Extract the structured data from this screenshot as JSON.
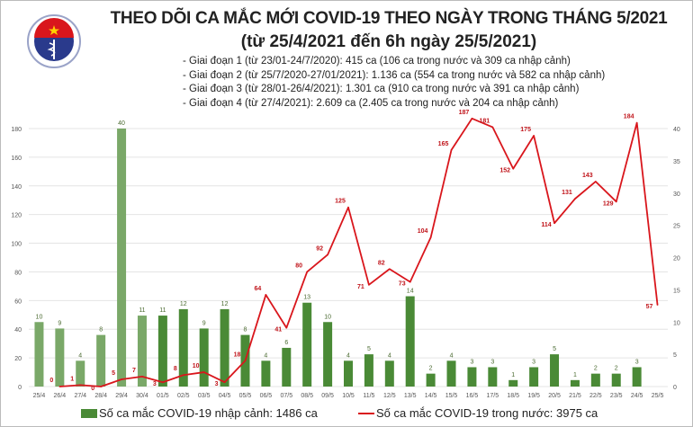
{
  "header": {
    "title": "THEO DÕI CA MẮC MỚI COVID-19 THEO NGÀY TRONG THÁNG 5/2021",
    "subtitle": "(từ 25/4/2021 đến 6h ngày 25/5/2021)",
    "phases": [
      "- Giai đoạn 1 (từ 23/01-24/7/2020): 415 ca (106 ca trong nước và 309 ca nhập cảnh)",
      "- Giai đoạn 2 (từ 25/7/2020-27/01/2021): 1.136 ca (554 ca trong nước và 582 ca nhập cảnh)",
      "- Giai đoạn 3 (từ 28/01-26/4/2021): 1.301 ca (910 ca trong nước và 391 ca nhập cảnh)",
      "- Giai đoạn 4 (từ 27/4/2021): 2.609 ca (2.405 ca trong nước và 204 ca nhập cảnh)"
    ],
    "logo_text": "BỘ Y TẾ MINISTRY OF HEALTH"
  },
  "chart_data": {
    "type": "bar+line",
    "categories": [
      "25/4",
      "26/4",
      "27/4",
      "28/4",
      "29/4",
      "30/4",
      "01/5",
      "02/5",
      "03/5",
      "04/5",
      "05/5",
      "06/5",
      "07/5",
      "08/5",
      "09/5",
      "10/5",
      "11/5",
      "12/5",
      "13/5",
      "14/5",
      "15/5",
      "16/5",
      "17/5",
      "18/5",
      "19/5",
      "20/5",
      "21/5",
      "22/5",
      "23/5",
      "24/5",
      "25/5"
    ],
    "series": [
      {
        "name": "Số ca mắc COVID-19 nhập cảnh: 1486 ca",
        "type": "bar",
        "axis": "right",
        "color": "#4a8a36",
        "early_color": "#7aa868",
        "values": [
          10,
          9,
          4,
          8,
          40,
          11,
          11,
          12,
          9,
          12,
          8,
          4,
          6,
          13,
          10,
          4,
          5,
          4,
          14,
          2,
          4,
          3,
          3,
          1,
          3,
          5,
          1,
          2,
          2,
          3,
          null
        ]
      },
      {
        "name": "Số ca mắc COVID-19 trong nước: 3975 ca",
        "type": "line",
        "axis": "left",
        "color": "#d9161c",
        "values": [
          null,
          0,
          1,
          0,
          5,
          7,
          3,
          8,
          10,
          3,
          18,
          64,
          41,
          80,
          92,
          125,
          71,
          82,
          73,
          104,
          165,
          187,
          181,
          152,
          175,
          114,
          131,
          143,
          129,
          184,
          57
        ]
      }
    ],
    "left_axis": {
      "ticks": [
        0,
        20,
        40,
        60,
        80,
        100,
        120,
        140,
        160,
        180
      ],
      "range": [
        0,
        180
      ]
    },
    "right_axis": {
      "ticks": [
        0,
        5,
        10,
        15,
        20,
        25,
        30,
        35,
        40
      ],
      "range": [
        0,
        40
      ]
    },
    "grid": true,
    "legend_placement": "bottom"
  },
  "legend": {
    "bar_label": "Số ca mắc COVID-19 nhập cảnh: 1486 ca",
    "line_label": "Số ca mắc COVID-19 trong nước: 3975 ca"
  }
}
